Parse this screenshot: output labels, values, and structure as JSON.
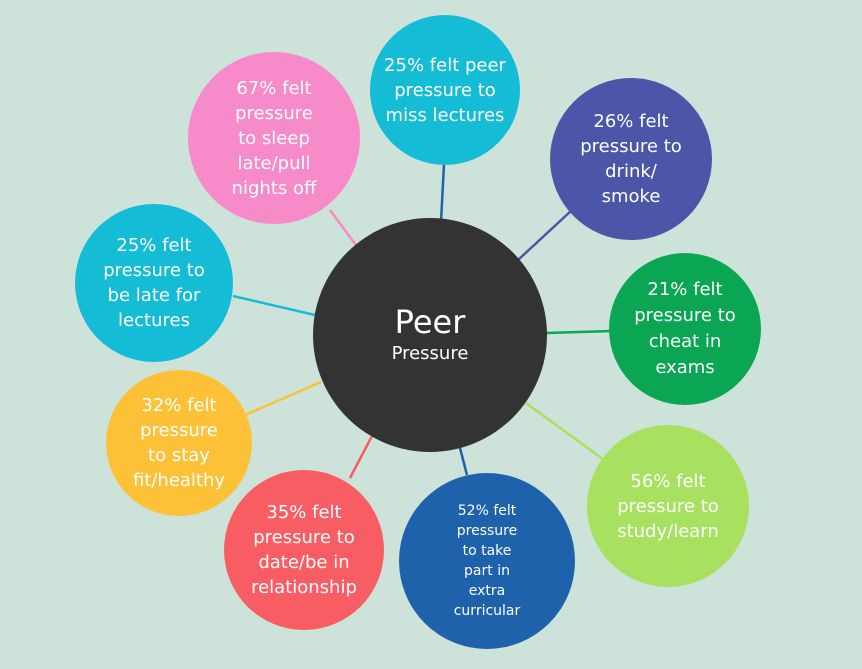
{
  "center": {
    "title": "Peer",
    "subtitle": "Pressure"
  },
  "nodes": {
    "peer_miss_lectures": {
      "label": "25% felt peer\npressure to\nmiss lectures",
      "color": "#14bcd6"
    },
    "drink_smoke": {
      "label": "26% felt\npressure to\ndrink/\nsmoke",
      "color": "#4c56a9"
    },
    "cheat_exams": {
      "label": "21% felt\npressure to\ncheat in\nexams",
      "color": "#0aa654"
    },
    "study_learn": {
      "label": "56% felt\npressure to\nstudy/learn",
      "color": "#a8e05f"
    },
    "extra_curricular": {
      "label": "52% felt\npressure\nto take\npart in\nextra\ncurricular",
      "color": "#1f62ac"
    },
    "date_relationship": {
      "label": "35% felt\npressure to\ndate/be in\nrelationship",
      "color": "#f75d62"
    },
    "fit_healthy": {
      "label": "32% felt\npressure\nto stay\nfit/healthy",
      "color": "#fcc137"
    },
    "late_lectures": {
      "label": "25% felt\npressure to\nbe late for\nlectures",
      "color": "#14bcd6"
    },
    "sleep_late": {
      "label": "67% felt\npressure\nto sleep\nlate/pull\nnights off",
      "color": "#f78ac8"
    }
  }
}
